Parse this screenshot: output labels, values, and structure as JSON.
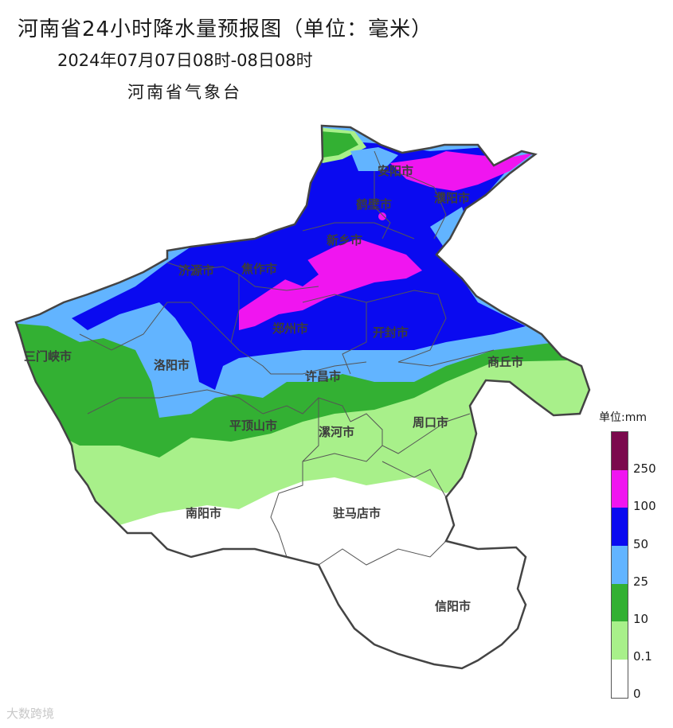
{
  "header": {
    "title": "河南省24小时降水量预报图（单位：毫米）",
    "subtitle": "2024年07月07日08时-08日08时",
    "agency": "河南省气象台"
  },
  "cities": [
    "安阳市",
    "濮阳市",
    "鹤壁市",
    "新乡市",
    "济源市",
    "焦作市",
    "郑州市",
    "开封市",
    "三门峡市",
    "洛阳市",
    "商丘市",
    "许昌市",
    "平顶山市",
    "漯河市",
    "周口市",
    "南阳市",
    "驻马店市",
    "信阳市"
  ],
  "legend": {
    "unit": "单位:mm",
    "levels": [
      {
        "label": "250",
        "color": "#7b0a4d"
      },
      {
        "label": "100",
        "color": "#f015f0"
      },
      {
        "label": "50",
        "color": "#0a0af0"
      },
      {
        "label": "25",
        "color": "#62b4ff"
      },
      {
        "label": "10",
        "color": "#33b033"
      },
      {
        "label": "0.1",
        "color": "#a8f08a"
      },
      {
        "label": "0",
        "color": "#ffffff"
      }
    ]
  },
  "watermark": "大数跨境"
}
